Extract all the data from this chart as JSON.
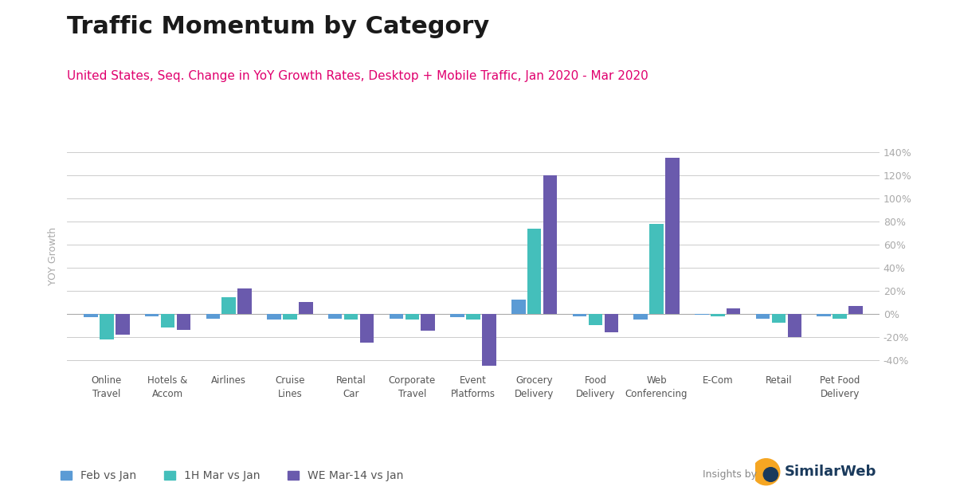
{
  "title": "Traffic Momentum by Category",
  "subtitle": "United States, Seq. Change in YoY Growth Rates, Desktop + Mobile Traffic, Jan 2020 - Mar 2020",
  "ylabel": "YOY Growth",
  "title_color": "#1a1a1a",
  "subtitle_color": "#e0006e",
  "background_color": "#ffffff",
  "categories": [
    "Online\nTravel",
    "Hotels &\nAccom",
    "Airlines",
    "Cruise\nLines",
    "Rental\nCar",
    "Corporate\nTravel",
    "Event\nPlatforms",
    "Grocery\nDelivery",
    "Food\nDelivery",
    "Web\nConferencing",
    "E-Com",
    "Retail",
    "Pet Food\nDelivery"
  ],
  "series": {
    "Feb vs Jan": {
      "color": "#5b9bd5",
      "values": [
        -3,
        -2,
        -4,
        -5,
        -4,
        -4,
        -3,
        12,
        -2,
        -5,
        -1,
        -4,
        -2
      ]
    },
    "1H Mar vs Jan": {
      "color": "#44bfbb",
      "values": [
        -22,
        -12,
        14,
        -5,
        -5,
        -5,
        -5,
        74,
        -10,
        78,
        -2,
        -8,
        -4
      ]
    },
    "WE Mar-14 vs Jan": {
      "color": "#6a5aad",
      "values": [
        -18,
        -14,
        22,
        10,
        -25,
        -15,
        -45,
        120,
        -16,
        135,
        5,
        -20,
        7
      ]
    }
  },
  "ylim": [
    -50,
    150
  ],
  "yticks": [
    -40,
    -20,
    0,
    20,
    40,
    60,
    80,
    100,
    120,
    140
  ],
  "bar_width": 0.26,
  "insights_text": "Insights by",
  "similarweb_text": "SimilarWeb"
}
